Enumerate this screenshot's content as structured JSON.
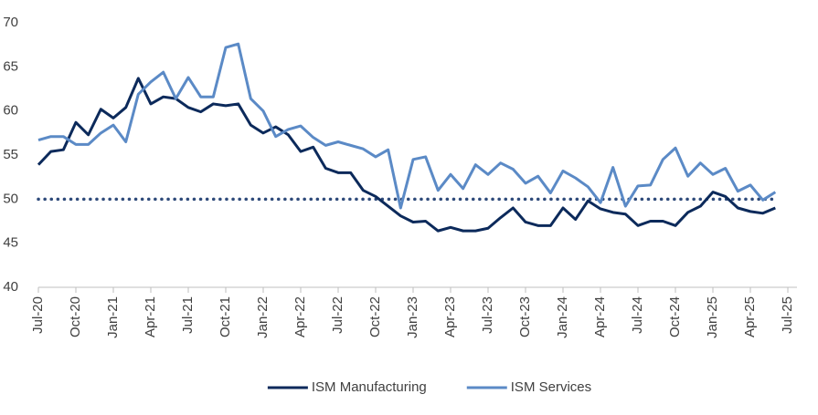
{
  "chart_data": {
    "type": "line",
    "categories": [
      "Jul-20",
      null,
      null,
      "Oct-20",
      null,
      null,
      "Jan-21",
      null,
      null,
      "Apr-21",
      null,
      null,
      "Jul-21",
      null,
      null,
      "Oct-21",
      null,
      null,
      "Jan-22",
      null,
      null,
      "Apr-22",
      null,
      null,
      "Jul-22",
      null,
      null,
      "Oct-22",
      null,
      null,
      "Jan-23",
      null,
      null,
      "Apr-23",
      null,
      null,
      "Jul-23",
      null,
      null,
      "Oct-23",
      null,
      null,
      "Jan-24",
      null,
      null,
      "Apr-24",
      null,
      null,
      "Jul-24",
      null,
      null,
      "Oct-24",
      null,
      null,
      "Jan-25",
      null,
      null,
      "Apr-25",
      null,
      null,
      "Jul-25"
    ],
    "series": [
      {
        "name": "ISM Manufacturing",
        "color": "#0c2a5b",
        "values": [
          53.9,
          55.4,
          55.6,
          58.7,
          57.3,
          60.2,
          59.2,
          60.4,
          63.7,
          60.8,
          61.6,
          61.4,
          60.4,
          59.9,
          60.8,
          60.6,
          60.8,
          58.4,
          57.5,
          58.2,
          57.3,
          55.4,
          55.9,
          53.5,
          53.0,
          53.0,
          51.0,
          50.3,
          49.2,
          48.1,
          47.4,
          47.5,
          46.4,
          46.8,
          46.4,
          46.4,
          46.7,
          47.9,
          49.0,
          47.4,
          47.0,
          47.0,
          49.0,
          47.7,
          49.8,
          48.9,
          48.5,
          48.3,
          47.0,
          47.5,
          47.5,
          47.0,
          48.5,
          49.2,
          50.8,
          50.3,
          49.0,
          48.6,
          48.4,
          49.0,
          null
        ]
      },
      {
        "name": "ISM Services",
        "color": "#5b8ac6",
        "values": [
          56.7,
          57.1,
          57.1,
          56.2,
          56.2,
          57.5,
          58.4,
          56.5,
          61.9,
          63.3,
          64.4,
          61.4,
          63.8,
          61.6,
          61.6,
          67.2,
          67.6,
          61.4,
          60.0,
          57.1,
          57.9,
          58.3,
          57.0,
          56.1,
          56.5,
          56.1,
          55.7,
          54.8,
          55.6,
          49.0,
          54.5,
          54.8,
          51.0,
          52.8,
          51.2,
          53.9,
          52.8,
          54.1,
          53.4,
          51.8,
          52.6,
          50.7,
          53.2,
          52.4,
          51.4,
          49.6,
          53.6,
          49.2,
          51.5,
          51.6,
          54.5,
          55.8,
          52.6,
          54.1,
          52.8,
          53.5,
          50.9,
          51.6,
          49.9,
          50.8,
          null
        ]
      }
    ],
    "reference_line": {
      "value": 50,
      "color": "#2e4a7a",
      "style": "dotted"
    },
    "ylim": [
      40,
      70
    ],
    "yticks": [
      40,
      45,
      50,
      55,
      60,
      65,
      70
    ],
    "grid": false,
    "legend": "bottom"
  }
}
